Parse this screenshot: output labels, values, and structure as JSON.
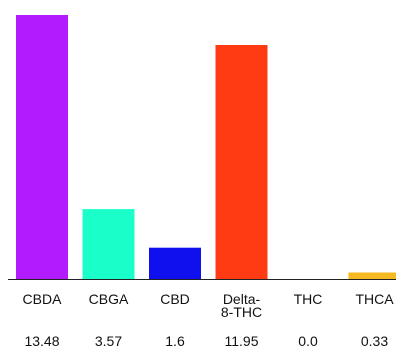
{
  "chart_data": {
    "type": "bar",
    "title": "",
    "xlabel": "",
    "ylabel": "",
    "categories": [
      {
        "lines": [
          "CBDA"
        ]
      },
      {
        "lines": [
          "CBGA"
        ]
      },
      {
        "lines": [
          "CBD"
        ]
      },
      {
        "lines": [
          "Delta-",
          "8-THC"
        ]
      },
      {
        "lines": [
          "THC"
        ]
      },
      {
        "lines": [
          "THCA"
        ]
      }
    ],
    "values": [
      13.48,
      3.57,
      1.6,
      11.95,
      0.0,
      0.33
    ],
    "value_labels": [
      "13.48",
      "3.57",
      "1.6",
      "11.95",
      "0.0",
      "0.33"
    ],
    "colors": [
      "#b31bff",
      "#1affc9",
      "#1010ee",
      "#ff3b14",
      "#aaaaaa",
      "#f5b820"
    ],
    "ylim": [
      0,
      13.48
    ],
    "grid": false,
    "legend": "none"
  }
}
